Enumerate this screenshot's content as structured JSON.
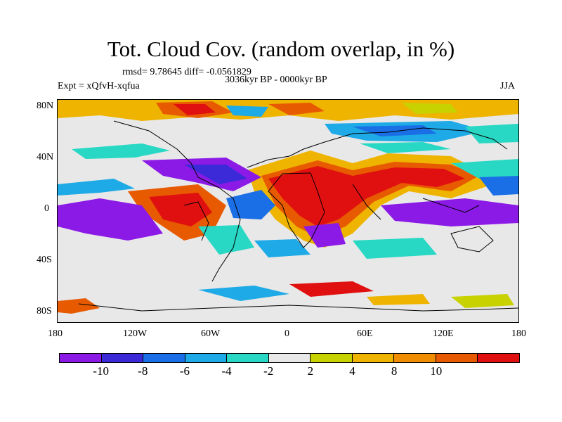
{
  "title": "Tot. Cloud Cov. (random overlap, in %)",
  "stats": "rmsd= 9.78645 diff= -0.0561829",
  "period": "3036kyr BP - 0000kyr BP",
  "expt": "Expt = xQfvH-xqfua",
  "season": "JJA",
  "map": {
    "lat_labels": [
      "80N",
      "40N",
      "0",
      "40S",
      "80S"
    ],
    "lon_labels": [
      "180",
      "120W",
      "60W",
      "0",
      "60E",
      "120E",
      "180"
    ]
  },
  "colorbar": {
    "colors": [
      "#8c1ae6",
      "#3c2ad8",
      "#1a6ee6",
      "#1eaae6",
      "#28d8c4",
      "#e8e8e8",
      "#c8d200",
      "#eeb400",
      "#f08c00",
      "#e85a00",
      "#e11010"
    ],
    "labels": [
      "-10",
      "-8",
      "-6",
      "-4",
      "-2",
      "2",
      "4",
      "8",
      "10"
    ]
  }
}
